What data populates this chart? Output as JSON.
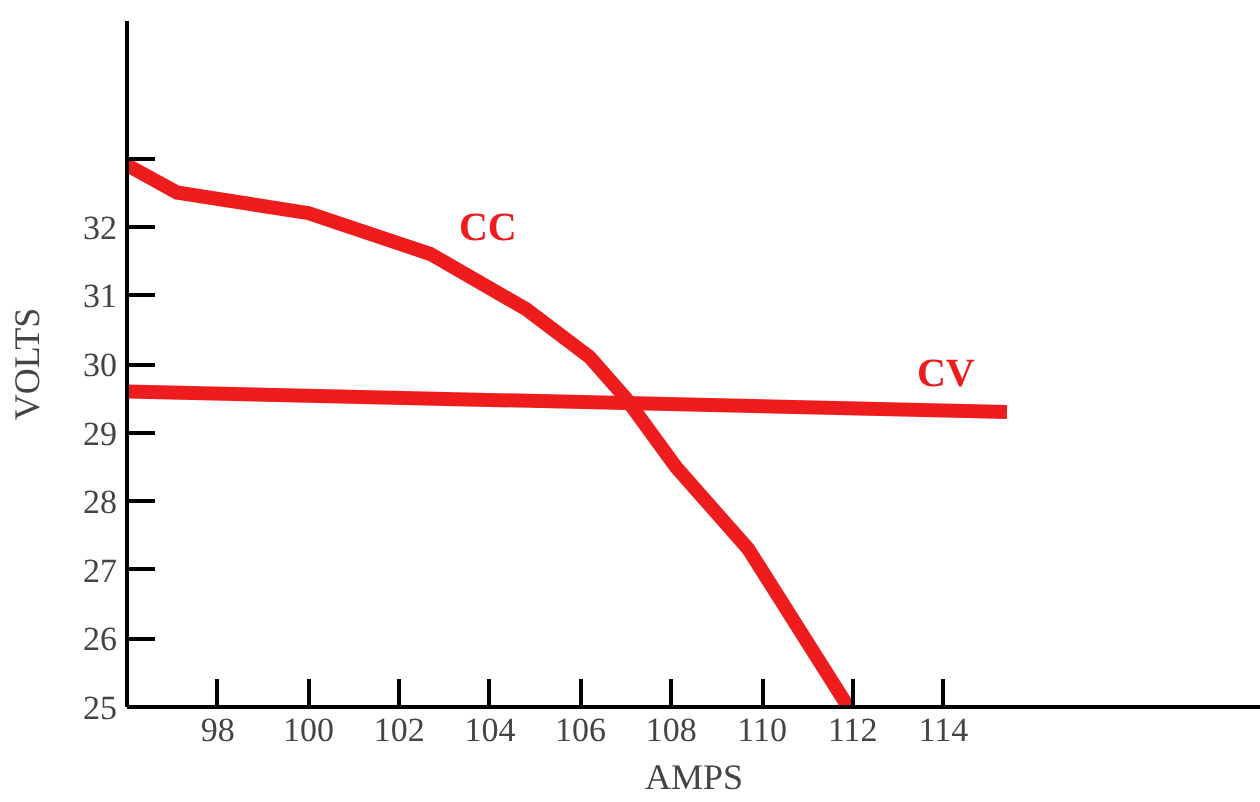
{
  "chart_data": {
    "type": "line",
    "xlabel": "AMPS",
    "ylabel": "VOLTS",
    "xlim": [
      96,
      121
    ],
    "ylim": [
      25,
      35
    ],
    "xticks": [
      98,
      100,
      102,
      104,
      106,
      108,
      110,
      112,
      114
    ],
    "yticks": [
      25,
      26,
      27,
      28,
      29,
      30,
      31,
      32,
      {
        "value": 33,
        "label": null
      }
    ],
    "grid": false,
    "legend": false,
    "marker": "none",
    "line_style": "solid",
    "series": [
      {
        "name": "CC",
        "color": "#ee1c1c",
        "x": [
          96,
          97.1,
          100,
          102.7,
          104.8,
          106.2,
          107.0,
          108.1,
          109.7,
          111.9
        ],
        "values": [
          32.9,
          32.5,
          32.2,
          31.6,
          30.8,
          30.1,
          29.5,
          28.5,
          27.3,
          25
        ]
      },
      {
        "name": "CV",
        "color": "#ee1c1c",
        "x": [
          96,
          115.4
        ],
        "values": [
          29.6,
          29.3
        ]
      }
    ]
  }
}
